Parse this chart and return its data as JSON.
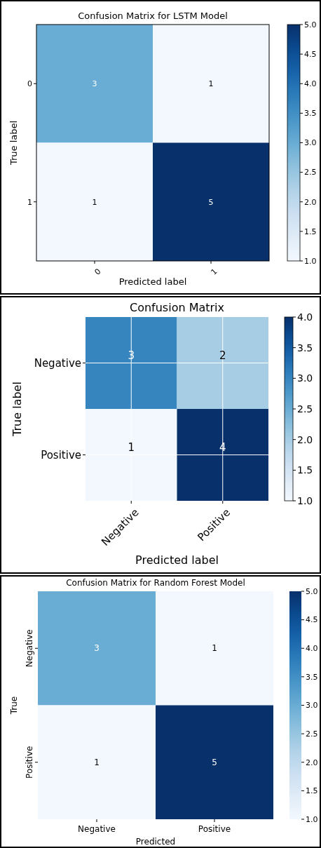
{
  "chart_data": [
    {
      "type": "heatmap",
      "title": "Confusion Matrix for LSTM Model",
      "xlabel": "Predicted label",
      "ylabel": "True label",
      "categories": [
        "0",
        "1"
      ],
      "y_categories": [
        "0",
        "1"
      ],
      "cells": [
        [
          3,
          1
        ],
        [
          1,
          5
        ]
      ],
      "clim": [
        1,
        5
      ],
      "cticks": [
        {
          "value": 1,
          "label": "1.0"
        },
        {
          "value": 1.5,
          "label": "1.5"
        },
        {
          "value": 2,
          "label": "2.0"
        },
        {
          "value": 2.5,
          "label": "2.5"
        },
        {
          "value": 3,
          "label": "3.0"
        },
        {
          "value": 3.5,
          "label": "3.5"
        },
        {
          "value": 4,
          "label": "4.0"
        },
        {
          "value": 4.5,
          "label": "4.5"
        },
        {
          "value": 5,
          "label": "5.0"
        }
      ],
      "data_labels": true
    },
    {
      "type": "heatmap",
      "title": "Confusion Matrix",
      "xlabel": "Predicted label",
      "ylabel": "True label",
      "categories": [
        "Negative",
        "Positive"
      ],
      "y_categories": [
        "Negative",
        "Positive"
      ],
      "cells": [
        [
          3,
          2
        ],
        [
          1,
          4
        ]
      ],
      "clim": [
        1,
        4
      ],
      "cticks": [
        {
          "value": 1,
          "label": "1.0"
        },
        {
          "value": 1.5,
          "label": "1.5"
        },
        {
          "value": 2,
          "label": "2.0"
        },
        {
          "value": 2.5,
          "label": "2.5"
        },
        {
          "value": 3,
          "label": "3.0"
        },
        {
          "value": 3.5,
          "label": "3.5"
        },
        {
          "value": 4,
          "label": "4.0"
        }
      ],
      "data_labels": true,
      "grid": true
    },
    {
      "type": "heatmap",
      "title": "Confusion Matrix for Random Forest Model",
      "xlabel": "Predicted",
      "ylabel": "True",
      "categories": [
        "Negative",
        "Positive"
      ],
      "y_categories": [
        "Negative",
        "Positive"
      ],
      "cells": [
        [
          3,
          1
        ],
        [
          1,
          5
        ]
      ],
      "clim": [
        1,
        5
      ],
      "cticks": [
        {
          "value": 1,
          "label": "1.0"
        },
        {
          "value": 1.5,
          "label": "1.5"
        },
        {
          "value": 2,
          "label": "2.0"
        },
        {
          "value": 2.5,
          "label": "2.5"
        },
        {
          "value": 3,
          "label": "3.0"
        },
        {
          "value": 3.5,
          "label": "3.5"
        },
        {
          "value": 4,
          "label": "4.0"
        },
        {
          "value": 4.5,
          "label": "4.5"
        },
        {
          "value": 5,
          "label": "5.0"
        }
      ],
      "data_labels": true
    }
  ]
}
